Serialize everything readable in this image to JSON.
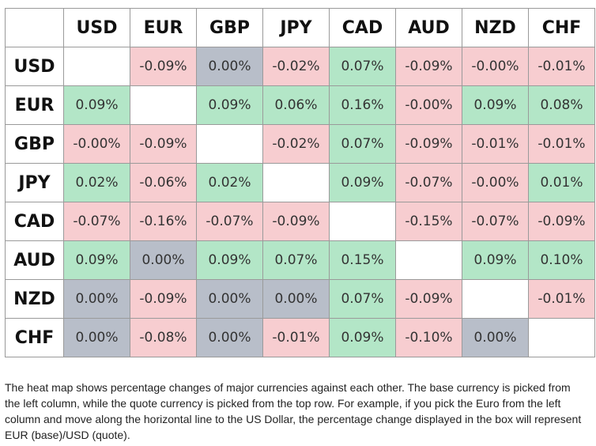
{
  "chart_data": {
    "type": "heatmap",
    "columns": [
      "USD",
      "EUR",
      "GBP",
      "JPY",
      "CAD",
      "AUD",
      "NZD",
      "CHF"
    ],
    "rows": [
      "USD",
      "EUR",
      "GBP",
      "JPY",
      "CAD",
      "AUD",
      "NZD",
      "CHF"
    ],
    "values": [
      [
        null,
        -0.09,
        0.0,
        -0.02,
        0.07,
        -0.09,
        -0.0,
        -0.01
      ],
      [
        0.09,
        null,
        0.09,
        0.06,
        0.16,
        -0.0,
        0.09,
        0.08
      ],
      [
        -0.0,
        -0.09,
        null,
        -0.02,
        0.07,
        -0.09,
        -0.01,
        -0.01
      ],
      [
        0.02,
        -0.06,
        0.02,
        null,
        0.09,
        -0.07,
        -0.0,
        0.01
      ],
      [
        -0.07,
        -0.16,
        -0.07,
        -0.09,
        null,
        -0.15,
        -0.07,
        -0.09
      ],
      [
        0.09,
        0.0,
        0.09,
        0.07,
        0.15,
        null,
        0.09,
        0.1
      ],
      [
        0.0,
        -0.09,
        0.0,
        0.0,
        0.07,
        -0.09,
        null,
        -0.01
      ],
      [
        0.0,
        -0.08,
        0.0,
        -0.01,
        0.09,
        -0.1,
        0.0,
        null
      ]
    ],
    "labels": [
      [
        "",
        "-0.09%",
        "0.00%",
        "-0.02%",
        "0.07%",
        "-0.09%",
        "-0.00%",
        "-0.01%"
      ],
      [
        "0.09%",
        "",
        "0.09%",
        "0.06%",
        "0.16%",
        "-0.00%",
        "0.09%",
        "0.08%"
      ],
      [
        "-0.00%",
        "-0.09%",
        "",
        "-0.02%",
        "0.07%",
        "-0.09%",
        "-0.01%",
        "-0.01%"
      ],
      [
        "0.02%",
        "-0.06%",
        "0.02%",
        "",
        "0.09%",
        "-0.07%",
        "-0.00%",
        "0.01%"
      ],
      [
        "-0.07%",
        "-0.16%",
        "-0.07%",
        "-0.09%",
        "",
        "-0.15%",
        "-0.07%",
        "-0.09%"
      ],
      [
        "0.09%",
        "0.00%",
        "0.09%",
        "0.07%",
        "0.15%",
        "",
        "0.09%",
        "0.10%"
      ],
      [
        "0.00%",
        "-0.09%",
        "0.00%",
        "0.00%",
        "0.07%",
        "-0.09%",
        "",
        "-0.01%"
      ],
      [
        "0.00%",
        "-0.08%",
        "0.00%",
        "-0.01%",
        "0.09%",
        "-0.10%",
        "0.00%",
        ""
      ]
    ],
    "colors": {
      "positive": "#b3e6c7",
      "negative": "#f7cdd0",
      "zero": "#b8bec9",
      "empty": "#ffffff"
    }
  },
  "caption": "The heat map shows percentage changes of major currencies against each other. The base currency is picked from the left column, while the quote currency is picked from the top row. For example, if you pick the Euro from the left column and move along the horizontal line to the US Dollar, the percentage change displayed in the box will represent EUR (base)/USD (quote)."
}
